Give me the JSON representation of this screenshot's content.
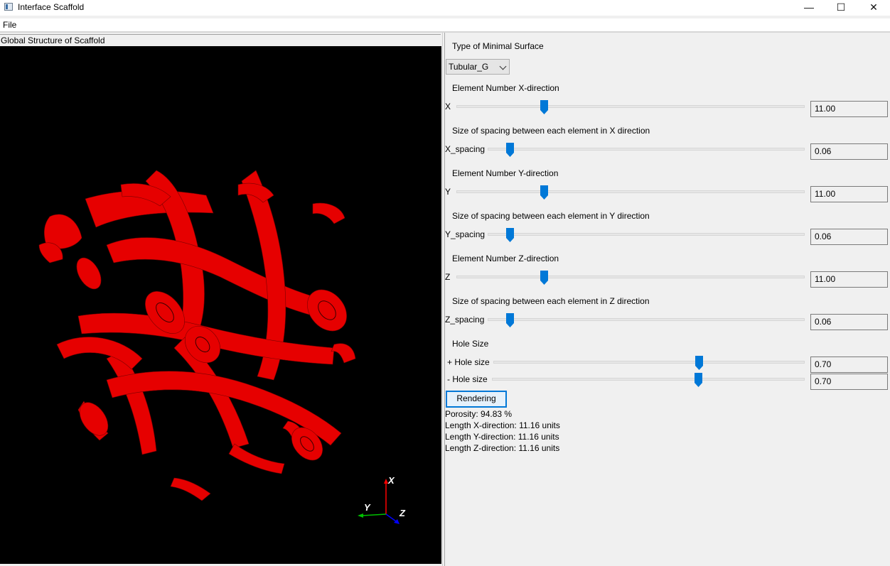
{
  "window": {
    "title": "Interface Scaffold",
    "icon": "app-window-icon",
    "minimize_glyph": "—",
    "maximize_glyph": "☐",
    "close_glyph": "✕"
  },
  "menu": {
    "file_label": "File"
  },
  "viewport": {
    "title": "Global Structure of Scaffold",
    "background": "#000000",
    "scaffold_color": "#ff0000",
    "axes": {
      "x_label": "X",
      "y_label": "Y",
      "z_label": "Z",
      "x_color": "#ff0000",
      "y_color": "#00c000",
      "z_color": "#0000ff"
    }
  },
  "controls": {
    "surface_type_label": "Type of Minimal Surface",
    "surface_type_value": "Tubular_G",
    "sliders": [
      {
        "section_label": "Element Number X-direction",
        "label": "X",
        "value_text": "11.00",
        "position": 0.25
      },
      {
        "section_label": "Size of spacing between each element in X direction",
        "label": "X_spacing",
        "value_text": "0.06",
        "position": 0.07
      },
      {
        "section_label": "Element Number Y-direction",
        "label": "Y",
        "value_text": "11.00",
        "position": 0.25
      },
      {
        "section_label": "Size of spacing between each element in Y direction",
        "label": "Y_spacing",
        "value_text": "0.06",
        "position": 0.07
      },
      {
        "section_label": "Element Number Z-direction",
        "label": "Z",
        "value_text": "11.00",
        "position": 0.25
      },
      {
        "section_label": "Size of spacing between each element in Z direction",
        "label": "Z_spacing",
        "value_text": "0.06",
        "position": 0.07
      }
    ],
    "hole_size": {
      "section_label": "Hole Size",
      "plus_label": "+ Hole size",
      "plus_value": "0.70",
      "plus_position": 0.66,
      "minus_label": "- Hole size",
      "minus_value": "0.70",
      "minus_position": 0.66
    },
    "render_button_label": "Rendering",
    "slider_accent": "#0078d7"
  },
  "results": {
    "porosity": "Porosity: 94.83 %",
    "length_x": "Length X-direction: 11.16 units",
    "length_y": "Length Y-direction: 11.16 units",
    "length_z": "Length Z-direction: 11.16 units"
  }
}
